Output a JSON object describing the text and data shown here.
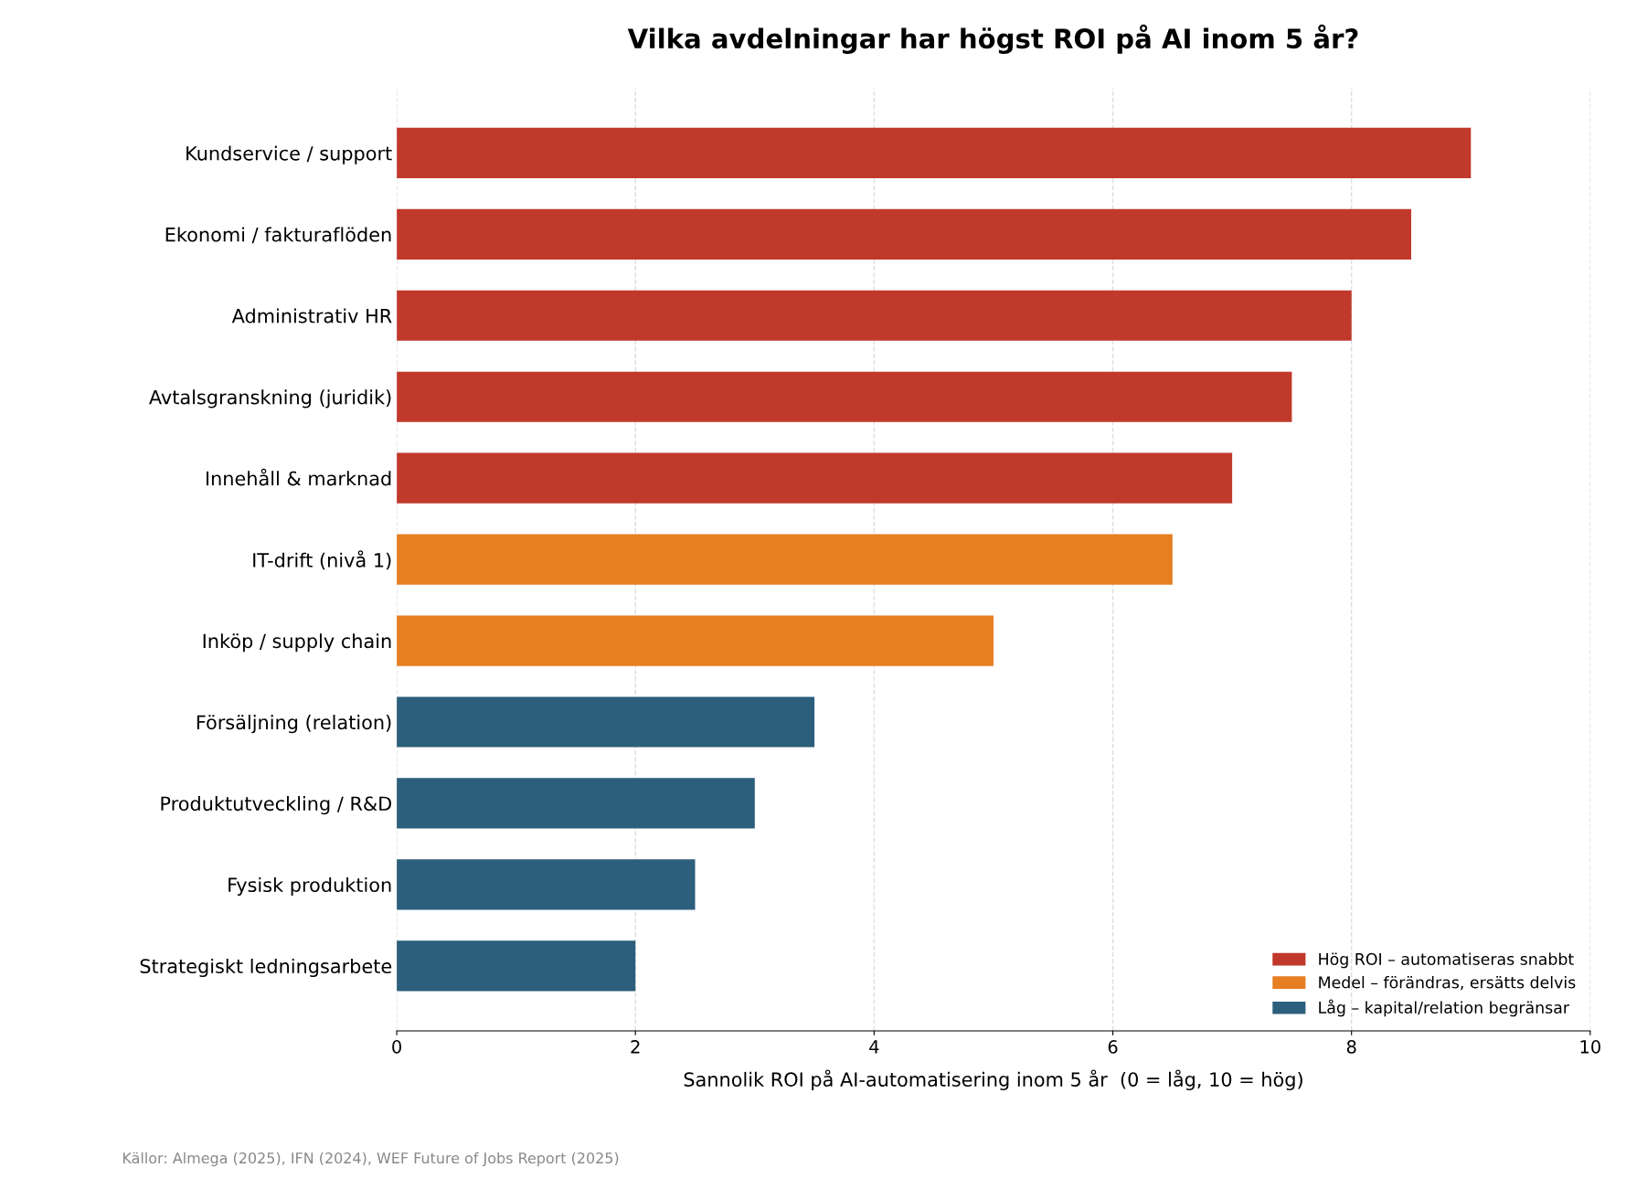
{
  "chart_data": {
    "type": "bar",
    "orientation": "horizontal",
    "stacked": true,
    "title": "Vilka avdelningar har högst ROI på AI inom 5 år?",
    "xlabel": "Sannolik ROI på AI-automatisering inom 5 år  (0 = låg, 10 = hög)",
    "categories": [
      "Kundservice / support",
      "Ekonomi / fakturaflöden",
      "Administrativ HR",
      "Avtalsgranskning (juridik)",
      "Innehåll & marknad",
      "IT-drift (nivå 1)",
      "Inköp / supply chain",
      "Försäljning (relation)",
      "Produktutveckling / R&D",
      "Fysisk produktion",
      "Strategiskt ledningsarbete"
    ],
    "series": [
      {
        "name": "Hög ROI – automatiseras snabbt",
        "color": "#c0392b",
        "values": [
          9,
          8.5,
          8,
          7.5,
          7,
          null,
          null,
          null,
          null,
          null,
          null
        ]
      },
      {
        "name": "Medel – förändras, ersätts delvis",
        "color": "#e67e22",
        "values": [
          null,
          null,
          null,
          null,
          null,
          6.5,
          5,
          null,
          null,
          null,
          null
        ]
      },
      {
        "name": "Låg – kapital/relation begränsar",
        "color": "#2c5f7c",
        "values": [
          null,
          null,
          null,
          null,
          null,
          null,
          null,
          3.5,
          3,
          2.5,
          2
        ]
      }
    ],
    "xlim": [
      0,
      10
    ],
    "xticks": [
      0,
      2,
      4,
      6,
      8,
      10
    ],
    "grid": "x",
    "legend": "bottom right",
    "annotations": [
      "Källor: Almega (2025), IFN (2024), WEF Future of Jobs Report (2025)"
    ]
  }
}
